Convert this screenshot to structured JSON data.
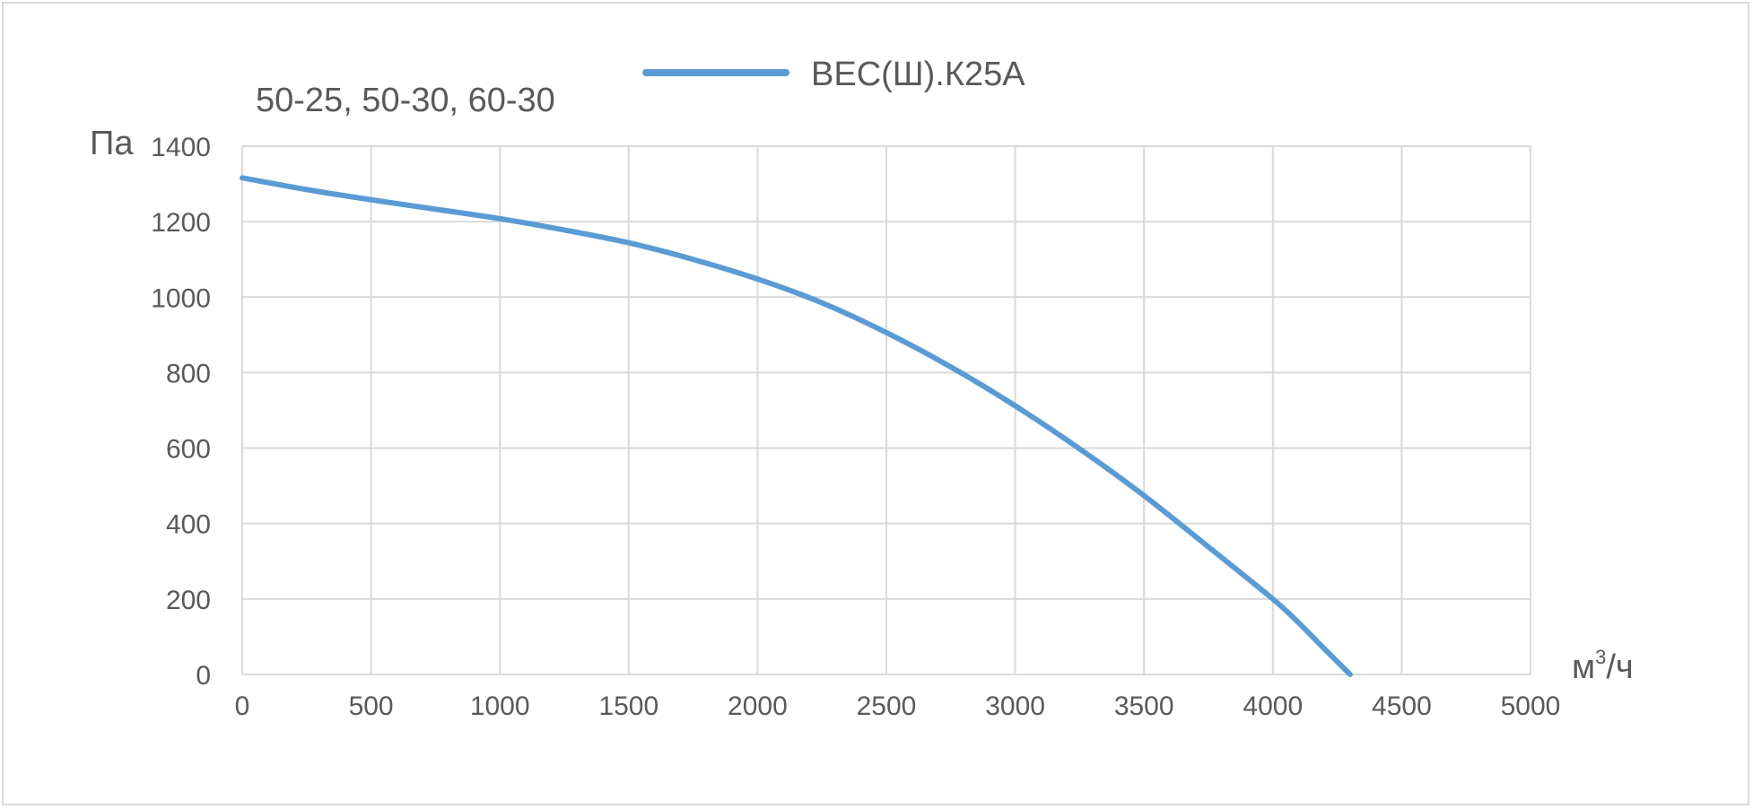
{
  "chart_data": {
    "type": "line",
    "title": "50-25, 50-30, 60-30",
    "ylabel": "Па",
    "xlabel_base": "м",
    "xlabel_sup": "3",
    "xlabel_tail": "/ч",
    "xlim": [
      0,
      5000
    ],
    "ylim": [
      0,
      1400
    ],
    "x_ticks": [
      0,
      500,
      1000,
      1500,
      2000,
      2500,
      3000,
      3500,
      4000,
      4500,
      5000
    ],
    "y_ticks": [
      0,
      200,
      400,
      600,
      800,
      1000,
      1200,
      1400
    ],
    "grid": true,
    "legend_position": "top",
    "series": [
      {
        "name": "ВЕС(Ш).К25А",
        "color": "#5b9bd5",
        "x": [
          0,
          250,
          500,
          750,
          1000,
          1250,
          1500,
          1750,
          2000,
          2250,
          2500,
          2750,
          3000,
          3250,
          3500,
          3750,
          4000,
          4100,
          4200,
          4300
        ],
        "y": [
          1316,
          1285,
          1258,
          1233,
          1208,
          1178,
          1144,
          1100,
          1048,
          985,
          906,
          815,
          712,
          598,
          474,
          338,
          200,
          137,
          68,
          0
        ]
      }
    ]
  }
}
